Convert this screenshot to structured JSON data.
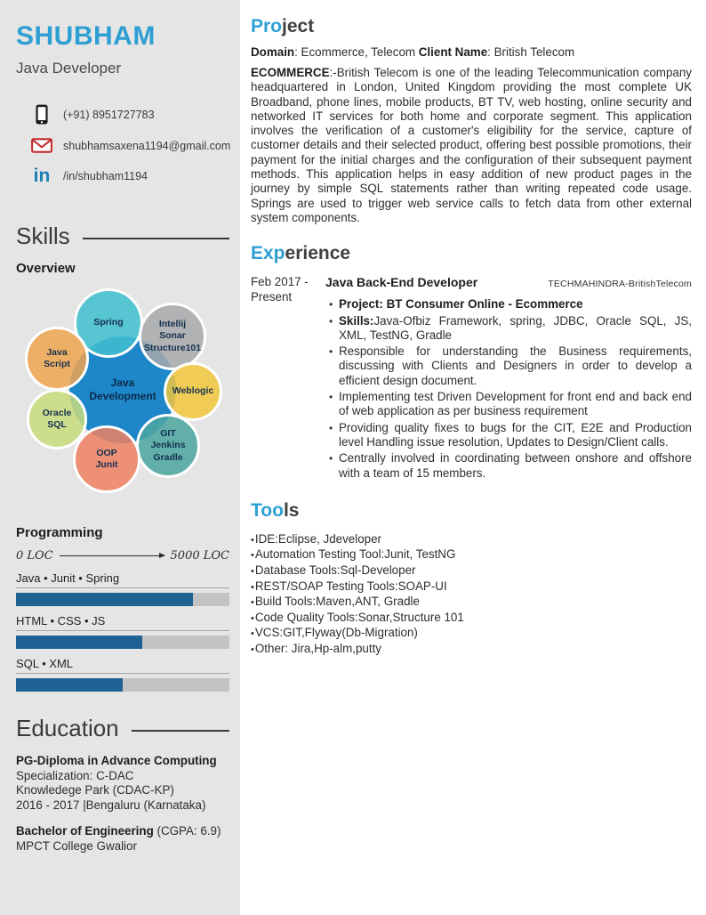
{
  "colors": {
    "accent_blue": "#2e9fd3",
    "sidebar_bg": "#e5e5e5",
    "bar_fill": "#1e6293",
    "bar_track": "#c3c3c3",
    "email_red": "#c42b2b",
    "linkedin_blue": "#1b7fb2"
  },
  "header": {
    "name": "SHUBHAM",
    "title": "Java Developer",
    "contacts": [
      {
        "icon": "phone-icon",
        "value": "(+91) 8951727783"
      },
      {
        "icon": "email-icon",
        "value": "shubhamsaxena1194@gmail.com"
      },
      {
        "icon": "linkedin-icon",
        "value": "/in/shubham1194"
      }
    ]
  },
  "skills": {
    "heading": "Skills",
    "subheading": "Overview",
    "bubbles": [
      {
        "label": "Spring",
        "color": "#3fc0cf"
      },
      {
        "label": "Intellij\nSonar\nStructure101",
        "color": "#a7a9ab"
      },
      {
        "label": "Java\nScript",
        "color": "#efa44f"
      },
      {
        "label": "Java\nDevelopment",
        "color": "#1d87c9"
      },
      {
        "label": "Weblogic",
        "color": "#f2c73d"
      },
      {
        "label": "Oracle\nSQL",
        "color": "#c8dc7d"
      },
      {
        "label": "GIT\nJenkins\nGradle",
        "color": "#4ba6a0"
      },
      {
        "label": "OOP\nJunit",
        "color": "#ef8161"
      }
    ]
  },
  "programming": {
    "heading": "Programming",
    "scale_min": "0 LOC",
    "scale_max": "5000 LOC",
    "bars": [
      {
        "label": "Java • Junit • Spring",
        "percent": 83
      },
      {
        "label": "HTML • CSS • JS",
        "percent": 59
      },
      {
        "label": "SQL • XML",
        "percent": 50
      }
    ]
  },
  "education": {
    "heading": "Education",
    "degree1": {
      "title": "PG-Diploma in Advance Computing",
      "line1": "Specialization: C-DAC",
      "line2": "Knowledege Park (CDAC-KP)",
      "line3": "2016 - 2017 |Bengaluru (Karnataka)"
    },
    "degree2": {
      "title": "Bachelor of Engineering",
      "gpa": " (CGPA: 6.9)",
      "line1": "MPCT College Gwalior"
    }
  },
  "project": {
    "heading_accent": "Pro",
    "heading_rest": "ject",
    "domain_label": "Domain",
    "domain_value": ": Ecommerce, Telecom ",
    "client_label": "Client Name",
    "client_value": ": British Telecom",
    "body_bold": "ECOMMERCE",
    "body": ":-British Telecom is one of the leading Telecommunication company headquartered in London, United Kingdom providing the most complete UK Broadband, phone lines, mobile products, BT TV, web hosting, online security and networked IT services for both home and corporate segment. This application involves the verification of a customer's eligibility for the service, capture of customer details and their selected product, offering best possible promotions, their payment for the initial charges and the configuration of their subsequent payment methods. This application helps in easy addition of new product pages in the journey by simple SQL statements rather than writing repeated code usage. Springs are used to trigger web service calls to fetch data from other external system components."
  },
  "experience": {
    "heading_accent": "Exp",
    "heading_rest": "erience",
    "dates": "Feb 2017 - Present",
    "job_title": "Java Back-End Developer",
    "company": "TECHMAHINDRA-BritishTelecom",
    "bullets": [
      {
        "bold": "Project: BT Consumer Online - Ecommerce",
        "text": ""
      },
      {
        "bold": "Skills:",
        "text": "Java-Ofbiz Framework, spring, JDBC, Oracle SQL, JS, XML, TestNG, Gradle"
      },
      {
        "bold": "",
        "text": "Responsible for understanding the Business requirements, discussing with Clients and Designers in order to develop a efficient design document."
      },
      {
        "bold": "",
        "text": "Implementing test Driven Development for front end and back end of web application as per business requirement"
      },
      {
        "bold": "",
        "text": "Providing quality fixes to bugs for the CIT, E2E and Production level Handling issue resolution, Updates to Design/Client calls."
      },
      {
        "bold": "",
        "text": "Centrally involved in coordinating between onshore and offshore with a team of 15 members."
      }
    ]
  },
  "tools": {
    "heading_accent": "Too",
    "heading_rest": "ls",
    "items": [
      "IDE:Eclipse, Jdeveloper",
      "Automation Testing Tool:Junit, TestNG",
      "Database Tools:Sql-Developer",
      "REST/SOAP Testing Tools:SOAP-UI",
      "Build Tools:Maven,ANT, Gradle",
      "Code Quality Tools:Sonar,Structure 101",
      "VCS:GIT,Flyway(Db-Migration)",
      "Other: Jira,Hp-alm,putty"
    ]
  }
}
